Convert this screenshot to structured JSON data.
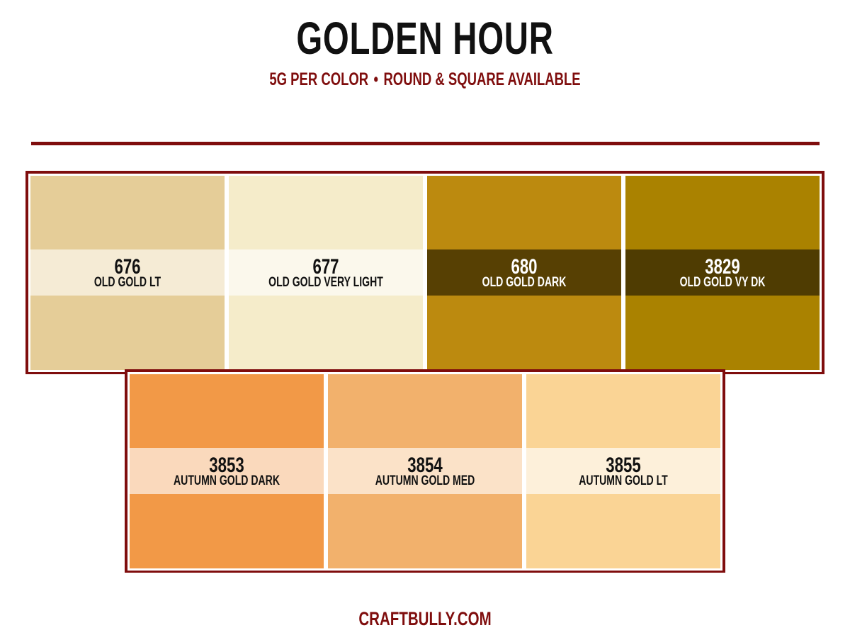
{
  "title": "GOLDEN HOUR",
  "subtitle": {
    "left": "5G PER COLOR",
    "separator": "•",
    "right": "ROUND & SQUARE AVAILABLE"
  },
  "footer": "CRAFTBULLY.COM",
  "colors": {
    "accent": "#7f0d0d",
    "title": "#111111",
    "frame_inner": "#ffffff"
  },
  "rows": [
    [
      {
        "code": "676",
        "name": "OLD GOLD LT",
        "swatch_color": "#e5cd98",
        "band_color": "#f5ebd5",
        "text_color": "#111111"
      },
      {
        "code": "677",
        "name": "OLD GOLD VERY LIGHT",
        "swatch_color": "#f5ecca",
        "band_color": "#fbf8ec",
        "text_color": "#111111"
      },
      {
        "code": "680",
        "name": "OLD GOLD DARK",
        "swatch_color": "#bc8a0f",
        "band_color": "#574003",
        "text_color": "#ffffff"
      },
      {
        "code": "3829",
        "name": "OLD GOLD VY DK",
        "swatch_color": "#aa8200",
        "band_color": "#4f3c02",
        "text_color": "#ffffff"
      }
    ],
    [
      {
        "code": "3853",
        "name": "AUTUMN GOLD DARK",
        "swatch_color": "#f29947",
        "band_color": "#fad9bc",
        "text_color": "#111111"
      },
      {
        "code": "3854",
        "name": "AUTUMN GOLD MED",
        "swatch_color": "#f2b16c",
        "band_color": "#fbe2c8",
        "text_color": "#111111"
      },
      {
        "code": "3855",
        "name": "AUTUMN GOLD LT",
        "swatch_color": "#fad495",
        "band_color": "#fdf0da",
        "text_color": "#111111"
      }
    ]
  ]
}
